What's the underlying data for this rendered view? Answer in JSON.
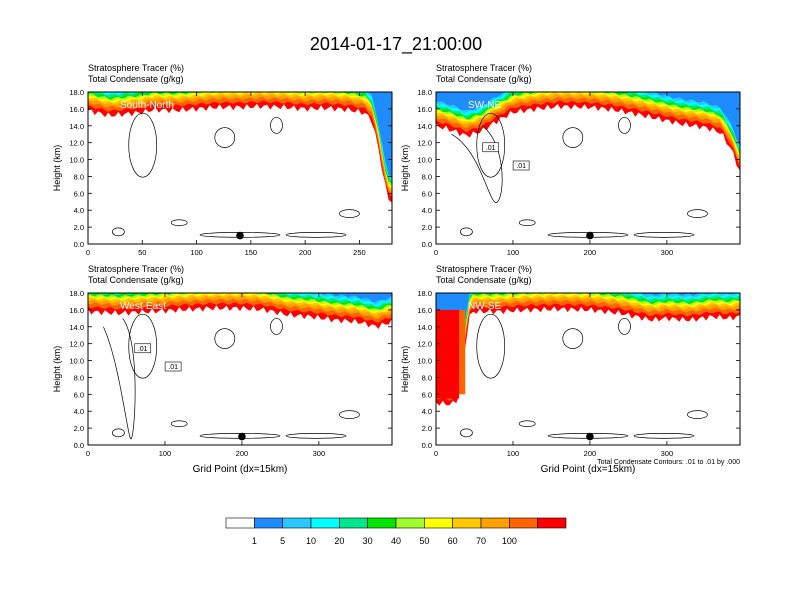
{
  "title": "2014-01-17_21:00:00",
  "chart_data": [
    {
      "type": "heatmap",
      "header": [
        "Stratosphere Tracer   (%)",
        "Total Condensate   (g/kg)"
      ],
      "panel_label": "South-North",
      "ylabel": "Height (km)",
      "xlabel": "",
      "xlim": [
        0,
        280
      ],
      "ylim": [
        0,
        18
      ],
      "xticks": [
        0,
        50,
        100,
        150,
        200,
        250
      ],
      "yticks": [
        "0.0",
        "2.0",
        "4.0",
        "6.0",
        "8.0",
        "10.0",
        "12.0",
        "14.0",
        "16.0",
        "18.0"
      ],
      "contour_labels": [],
      "marker": {
        "x": 140,
        "y": 1.0
      },
      "tracer_base_km": [
        [
          0,
          15.8
        ],
        [
          20,
          15.2
        ],
        [
          35,
          15.4
        ],
        [
          50,
          15.6
        ],
        [
          60,
          15.9
        ],
        [
          80,
          15.8
        ],
        [
          100,
          16.0
        ],
        [
          120,
          16.2
        ],
        [
          140,
          16.2
        ],
        [
          160,
          16.3
        ],
        [
          180,
          16.2
        ],
        [
          200,
          16.0
        ],
        [
          220,
          16.1
        ],
        [
          240,
          15.9
        ],
        [
          255,
          15.5
        ],
        [
          262,
          14.5
        ],
        [
          268,
          11.0
        ],
        [
          272,
          8.0
        ],
        [
          276,
          5.5
        ],
        [
          280,
          5.0
        ]
      ]
    },
    {
      "type": "heatmap",
      "header": [
        "Stratosphere Tracer   (%)",
        "Total Condensate   (g/kg)"
      ],
      "panel_label": "SW-NE",
      "ylabel": "Height (km)",
      "xlabel": "",
      "xlim": [
        0,
        395
      ],
      "ylim": [
        0,
        18
      ],
      "xticks": [
        0,
        100,
        200,
        300
      ],
      "yticks": [
        "0.0",
        "2.0",
        "4.0",
        "6.0",
        "8.0",
        "10.0",
        "12.0",
        "14.0",
        "16.0",
        "18.0"
      ],
      "contour_labels": [
        ".01",
        ".01"
      ],
      "marker": {
        "x": 200,
        "y": 1.0
      },
      "tracer_base_km": [
        [
          0,
          14.0
        ],
        [
          20,
          13.5
        ],
        [
          40,
          12.8
        ],
        [
          60,
          13.4
        ],
        [
          80,
          14.6
        ],
        [
          100,
          15.6
        ],
        [
          130,
          16.0
        ],
        [
          160,
          16.3
        ],
        [
          200,
          16.2
        ],
        [
          230,
          15.9
        ],
        [
          260,
          15.4
        ],
        [
          290,
          14.8
        ],
        [
          320,
          14.2
        ],
        [
          350,
          13.8
        ],
        [
          370,
          13.2
        ],
        [
          385,
          11.0
        ],
        [
          395,
          8.5
        ]
      ]
    },
    {
      "type": "heatmap",
      "header": [
        "Stratosphere Tracer   (%)",
        "Total Condensate   (g/kg)"
      ],
      "panel_label": "West-East",
      "ylabel": "Height (km)",
      "xlabel": "Grid Point (dx=15km)",
      "xlim": [
        0,
        395
      ],
      "ylim": [
        0,
        18
      ],
      "xticks": [
        0,
        100,
        200,
        300
      ],
      "yticks": [
        "0.0",
        "2.0",
        "4.0",
        "6.0",
        "8.0",
        "10.0",
        "12.0",
        "14.0",
        "16.0",
        "18.0"
      ],
      "contour_labels": [
        ".01",
        ".01"
      ],
      "marker": {
        "x": 200,
        "y": 1.0
      },
      "tracer_base_km": [
        [
          0,
          15.8
        ],
        [
          40,
          15.6
        ],
        [
          80,
          15.8
        ],
        [
          120,
          16.0
        ],
        [
          160,
          16.2
        ],
        [
          200,
          16.2
        ],
        [
          230,
          16.0
        ],
        [
          260,
          15.4
        ],
        [
          290,
          15.2
        ],
        [
          320,
          14.8
        ],
        [
          350,
          14.6
        ],
        [
          375,
          14.0
        ],
        [
          395,
          14.6
        ]
      ]
    },
    {
      "type": "heatmap",
      "header": [
        "Stratosphere Tracer   (%)",
        "Total Condensate   (g/kg)"
      ],
      "panel_label": "NW-SE",
      "ylabel": "Height (km)",
      "xlabel": "Grid Point (dx=15km)",
      "xlim": [
        0,
        395
      ],
      "ylim": [
        0,
        18
      ],
      "xticks": [
        0,
        100,
        200,
        300
      ],
      "yticks": [
        "0.0",
        "2.0",
        "4.0",
        "6.0",
        "8.0",
        "10.0",
        "12.0",
        "14.0",
        "16.0",
        "18.0"
      ],
      "contour_labels": [],
      "footnote": "Total Condensate Contours: .01 to .01 by .000",
      "marker": {
        "x": 200,
        "y": 1.0
      },
      "tracer_base_km": [
        [
          0,
          5.0
        ],
        [
          20,
          4.8
        ],
        [
          30,
          5.5
        ],
        [
          38,
          12.0
        ],
        [
          45,
          15.8
        ],
        [
          80,
          15.8
        ],
        [
          120,
          16.0
        ],
        [
          160,
          16.1
        ],
        [
          200,
          16.0
        ],
        [
          240,
          15.6
        ],
        [
          280,
          14.8
        ],
        [
          300,
          15.0
        ],
        [
          330,
          14.8
        ],
        [
          360,
          15.2
        ],
        [
          380,
          15.0
        ],
        [
          395,
          15.2
        ]
      ]
    }
  ],
  "colorbar": {
    "labels": [
      "1",
      "5",
      "10",
      "20",
      "30",
      "40",
      "50",
      "60",
      "70",
      "100"
    ],
    "colors": [
      "#ffffff",
      "#1e8cff",
      "#28c8ff",
      "#00ffff",
      "#00e68c",
      "#00e600",
      "#a0ff28",
      "#ffff00",
      "#ffc800",
      "#ffa000",
      "#ff6400",
      "#ff0000"
    ]
  }
}
